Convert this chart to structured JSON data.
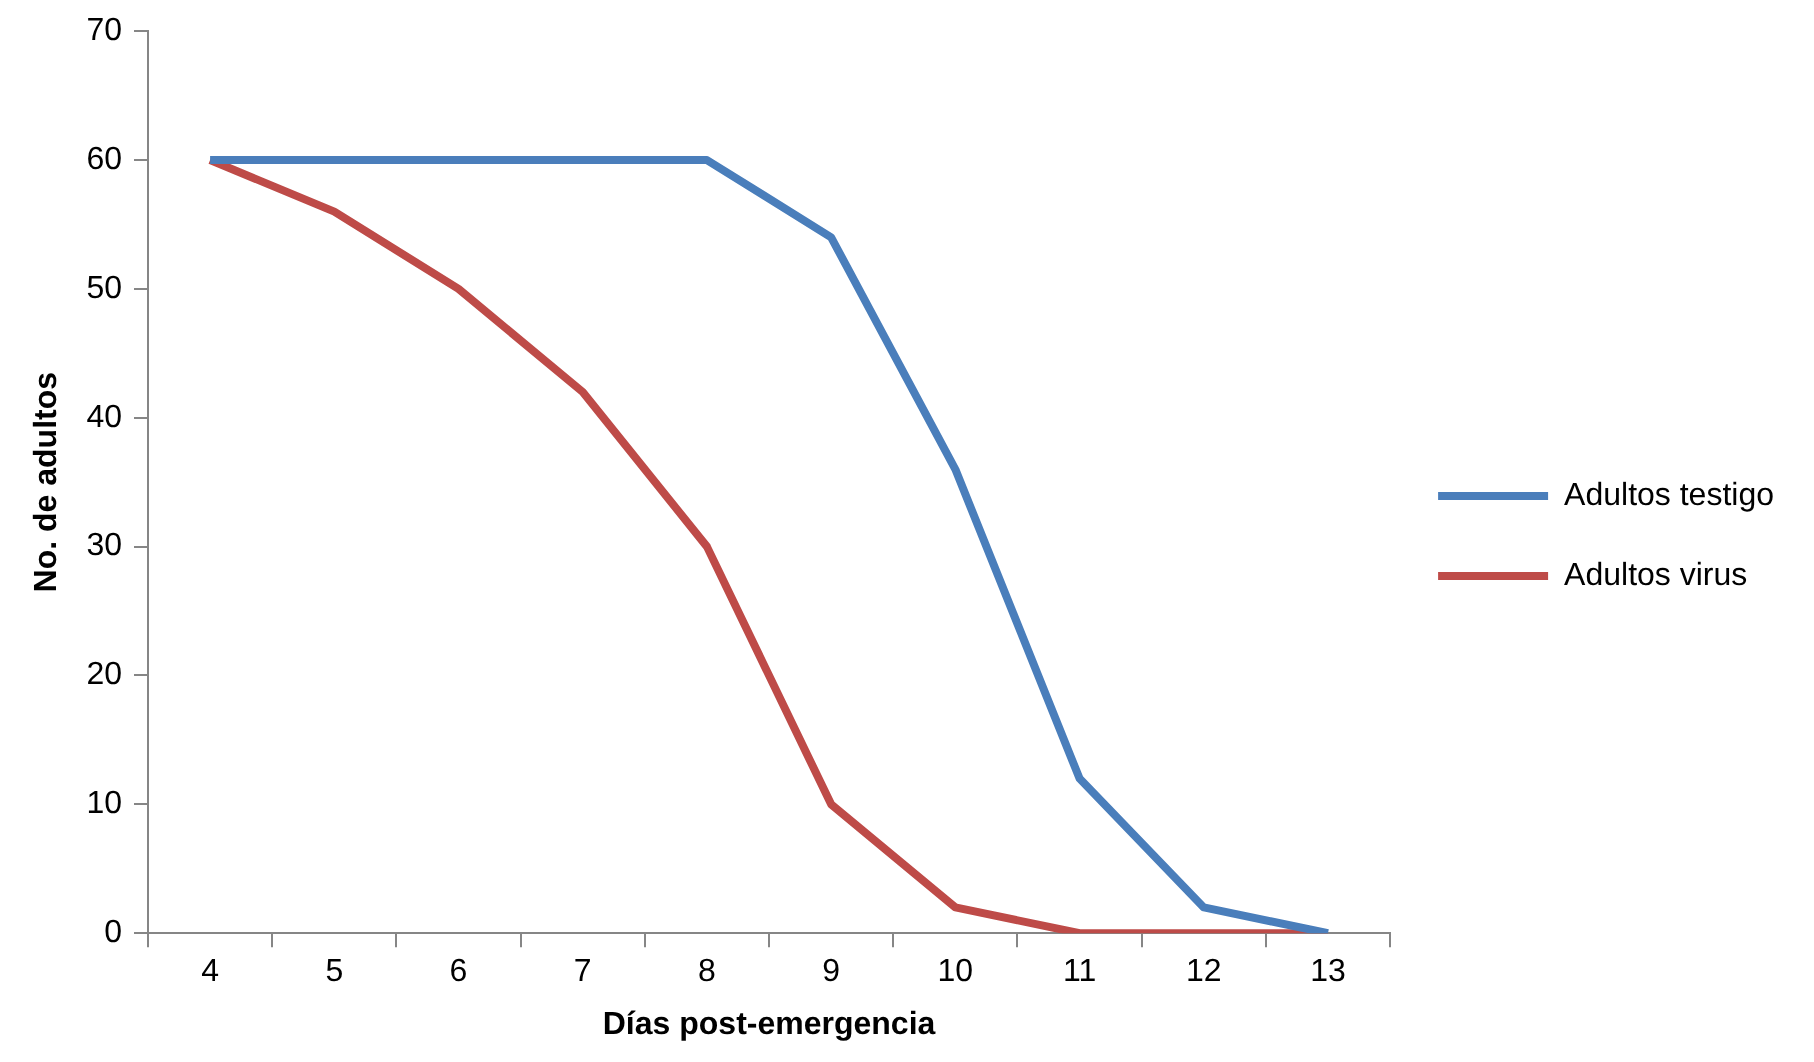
{
  "chart_data": {
    "type": "line",
    "xlabel": "Días post-emergencia",
    "ylabel": "No. de adultos",
    "categories": [
      "4",
      "5",
      "6",
      "7",
      "8",
      "9",
      "10",
      "11",
      "12",
      "13"
    ],
    "series": [
      {
        "name": "Adultos testigo",
        "color": "#4a7ebb",
        "values": [
          60,
          60,
          60,
          60,
          60,
          54,
          36,
          12,
          2,
          0
        ]
      },
      {
        "name": "Adultos virus",
        "color": "#be4b48",
        "values": [
          60,
          56,
          50,
          42,
          30,
          10,
          2,
          0,
          0,
          0
        ]
      }
    ],
    "ylim": [
      0,
      70
    ],
    "yticks": [
      0,
      10,
      20,
      30,
      40,
      50,
      60,
      70
    ],
    "grid": false,
    "legend": "right",
    "marker": "none",
    "line_style": "solid"
  }
}
